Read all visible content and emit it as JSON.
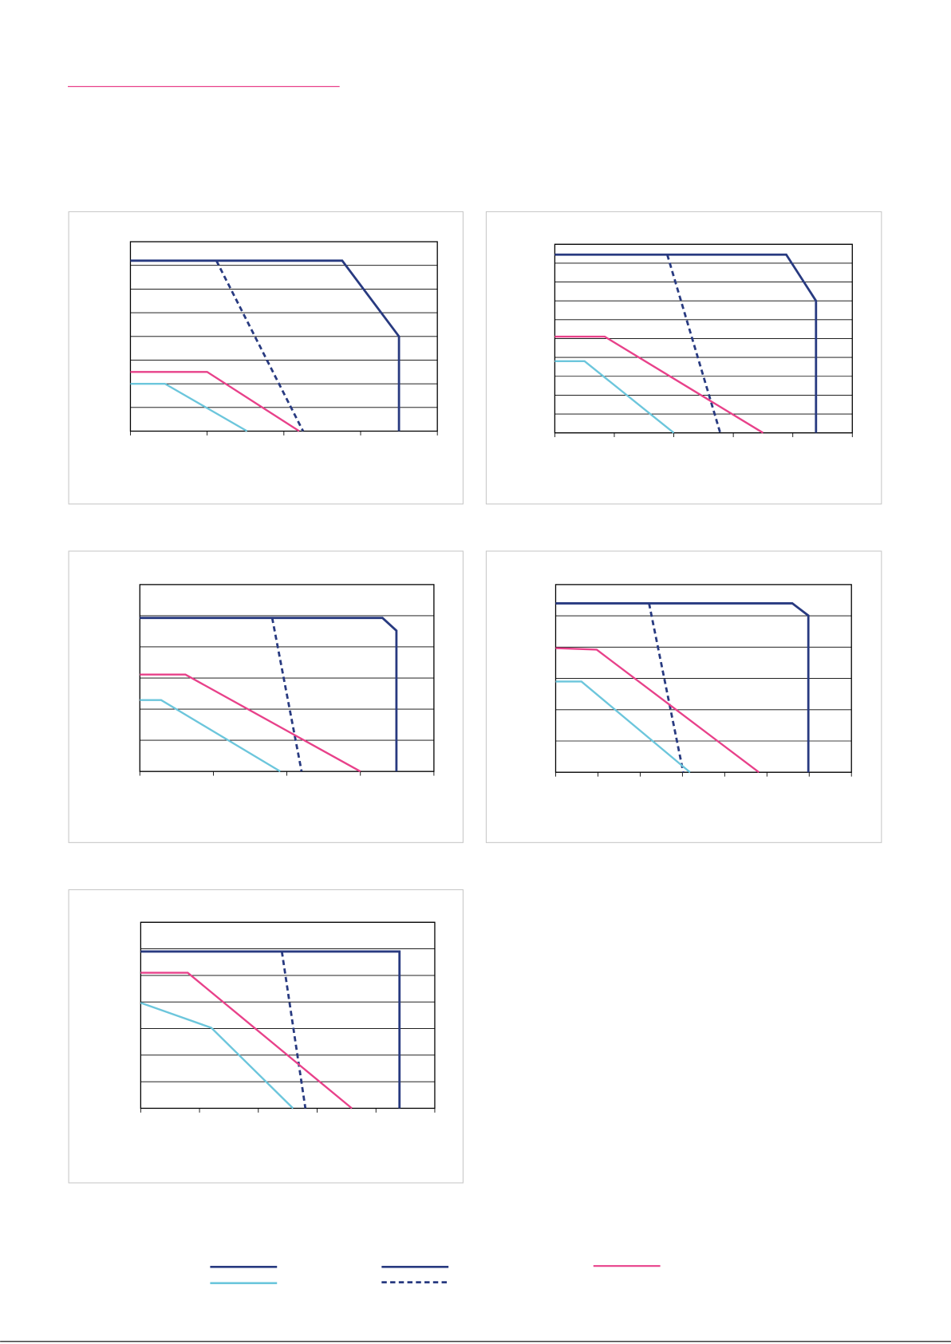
{
  "chart_data": [
    {
      "type": "line",
      "grid": true,
      "xlim": [
        0,
        4
      ],
      "ylim": [
        0,
        8
      ],
      "xticks": [
        0,
        1,
        2,
        3,
        4
      ],
      "yticks": [
        0,
        1,
        2,
        3,
        4,
        5,
        6,
        7,
        8
      ],
      "series": [
        {
          "color": "#283a80",
          "dash": false,
          "x": [
            0,
            2.76,
            3.5,
            3.5
          ],
          "values": [
            7.2,
            7.2,
            4.0,
            0
          ]
        },
        {
          "color": "#283a80",
          "dash": true,
          "x": [
            1.12,
            2.25
          ],
          "values": [
            7.2,
            0
          ]
        },
        {
          "color": "#e8418a",
          "dash": false,
          "x": [
            0,
            1.0,
            2.2
          ],
          "values": [
            2.5,
            2.5,
            0
          ]
        },
        {
          "color": "#6cc6dc",
          "dash": false,
          "x": [
            0,
            0.45,
            1.52
          ],
          "values": [
            2.0,
            2.0,
            0
          ]
        }
      ]
    },
    {
      "type": "line",
      "grid": true,
      "xlim": [
        0,
        5
      ],
      "ylim": [
        0,
        10
      ],
      "xticks": [
        0,
        1,
        2,
        3,
        4,
        5
      ],
      "yticks": [
        0,
        1,
        2,
        3,
        4,
        5,
        6,
        7,
        8,
        9,
        10
      ],
      "series": [
        {
          "color": "#283a80",
          "dash": false,
          "x": [
            0,
            3.89,
            4.39,
            4.39
          ],
          "values": [
            9.45,
            9.45,
            7.0,
            0
          ]
        },
        {
          "color": "#283a80",
          "dash": true,
          "x": [
            1.89,
            2.78
          ],
          "values": [
            9.45,
            0
          ]
        },
        {
          "color": "#e8418a",
          "dash": false,
          "x": [
            0,
            0.84,
            3.5
          ],
          "values": [
            5.1,
            5.1,
            0
          ]
        },
        {
          "color": "#6cc6dc",
          "dash": false,
          "x": [
            0,
            0.5,
            2.0
          ],
          "values": [
            3.8,
            3.8,
            0
          ]
        }
      ]
    },
    {
      "type": "line",
      "grid": true,
      "xlim": [
        0,
        4
      ],
      "ylim": [
        0,
        6
      ],
      "xticks": [
        0,
        1,
        2,
        3,
        4
      ],
      "yticks": [
        0,
        1,
        2,
        3,
        4,
        5,
        6
      ],
      "series": [
        {
          "color": "#283a80",
          "dash": false,
          "x": [
            0,
            3.3,
            3.49,
            3.49
          ],
          "values": [
            4.93,
            4.93,
            4.52,
            0
          ]
        },
        {
          "color": "#283a80",
          "dash": true,
          "x": [
            1.8,
            2.2
          ],
          "values": [
            4.93,
            0
          ]
        },
        {
          "color": "#e8418a",
          "dash": false,
          "x": [
            0,
            0.62,
            3.0
          ],
          "values": [
            3.11,
            3.11,
            0
          ]
        },
        {
          "color": "#6cc6dc",
          "dash": false,
          "x": [
            0,
            0.29,
            1.91
          ],
          "values": [
            2.29,
            2.29,
            0
          ]
        }
      ]
    },
    {
      "type": "line",
      "grid": true,
      "xlim": [
        0,
        7
      ],
      "ylim": [
        0,
        6
      ],
      "xticks": [
        0,
        1,
        2,
        3,
        4,
        5,
        6,
        7
      ],
      "yticks": [
        0,
        1,
        2,
        3,
        4,
        5,
        6
      ],
      "series": [
        {
          "color": "#283a80",
          "dash": false,
          "x": [
            0,
            5.6,
            5.98,
            5.98
          ],
          "values": [
            5.4,
            5.4,
            5.01,
            0
          ]
        },
        {
          "color": "#283a80",
          "dash": true,
          "x": [
            2.21,
            3.02
          ],
          "values": [
            5.4,
            0
          ]
        },
        {
          "color": "#e8418a",
          "dash": false,
          "x": [
            0,
            0.97,
            4.81
          ],
          "values": [
            3.97,
            3.92,
            0
          ]
        },
        {
          "color": "#6cc6dc",
          "dash": false,
          "x": [
            0,
            0.61,
            3.18
          ],
          "values": [
            2.9,
            2.9,
            0
          ]
        }
      ]
    },
    {
      "type": "line",
      "grid": true,
      "xlim": [
        0,
        5
      ],
      "ylim": [
        0,
        7
      ],
      "xticks": [
        0,
        1,
        2,
        3,
        4,
        5
      ],
      "yticks": [
        0,
        1,
        2,
        3,
        4,
        5,
        6,
        7
      ],
      "series": [
        {
          "color": "#283a80",
          "dash": false,
          "x": [
            0,
            4.4,
            4.4
          ],
          "values": [
            5.9,
            5.9,
            0
          ]
        },
        {
          "color": "#283a80",
          "dash": true,
          "x": [
            2.4,
            2.8
          ],
          "values": [
            5.9,
            0
          ]
        },
        {
          "color": "#e8418a",
          "dash": false,
          "x": [
            0,
            0.8,
            3.59
          ],
          "values": [
            5.1,
            5.1,
            0
          ]
        },
        {
          "color": "#6cc6dc",
          "dash": false,
          "x": [
            0,
            1.2,
            2.59
          ],
          "values": [
            3.97,
            3.03,
            0
          ]
        }
      ]
    }
  ]
}
